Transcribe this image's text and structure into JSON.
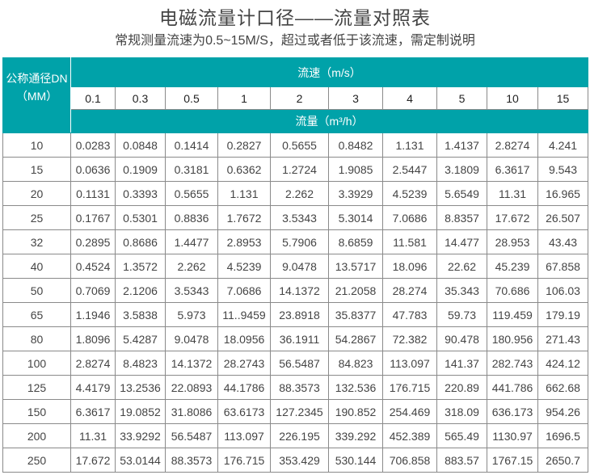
{
  "title": "电磁流量计口径——流量对照表",
  "subtitle": "常规测量流速为0.5~15M/S，超过或者低于该流速，需定制说明",
  "colors": {
    "header_bg": "#00a2a9",
    "header_text": "#ffffff",
    "border": "#8a8a8a"
  },
  "table": {
    "dn_header_line1": "公称通径DN",
    "dn_header_line2": "（MM）",
    "speed_header": "流速（m/s）",
    "flow_header": "流量（m³/h）",
    "speeds": [
      "0.1",
      "0.3",
      "0.5",
      "1",
      "2",
      "3",
      "4",
      "5",
      "10",
      "15"
    ],
    "rows": [
      {
        "dn": "10",
        "values": [
          "0.0283",
          "0.0848",
          "0.1414",
          "0.2827",
          "0.5655",
          "0.8482",
          "1.131",
          "1.4137",
          "2.8274",
          "4.241"
        ]
      },
      {
        "dn": "15",
        "values": [
          "0.0636",
          "0.1909",
          "0.3181",
          "0.6362",
          "1.2724",
          "1.9085",
          "2.5447",
          "3.1809",
          "6.3617",
          "9.543"
        ]
      },
      {
        "dn": "20",
        "values": [
          "0.1131",
          "0.3393",
          "0.5655",
          "1.131",
          "2.262",
          "3.3929",
          "4.5239",
          "5.6549",
          "11.31",
          "16.965"
        ]
      },
      {
        "dn": "25",
        "values": [
          "0.1767",
          "0.5301",
          "0.8836",
          "1.7672",
          "3.5343",
          "5.3014",
          "7.0686",
          "8.8357",
          "17.672",
          "26.507"
        ]
      },
      {
        "dn": "32",
        "values": [
          "0.2895",
          "0.8686",
          "1.4477",
          "2.8953",
          "5.7906",
          "8.6859",
          "11.581",
          "14.477",
          "28.953",
          "43.43"
        ]
      },
      {
        "dn": "40",
        "values": [
          "0.4524",
          "1.3572",
          "2.262",
          "4.5239",
          "9.0478",
          "13.5717",
          "18.096",
          "22.62",
          "45.239",
          "67.858"
        ]
      },
      {
        "dn": "50",
        "values": [
          "0.7069",
          "2.1206",
          "3.5343",
          "7.0686",
          "14.1372",
          "21.2058",
          "28.274",
          "35.343",
          "70.686",
          "106.03"
        ]
      },
      {
        "dn": "65",
        "values": [
          "1.1946",
          "3.5838",
          "5.973",
          "11..9459",
          "23.8918",
          "35.8377",
          "47.783",
          "59.73",
          "119.459",
          "179.19"
        ]
      },
      {
        "dn": "80",
        "values": [
          "1.8096",
          "5.4287",
          "9.0478",
          "18.0956",
          "36.1911",
          "54.2867",
          "72.382",
          "90.478",
          "180.956",
          "271.43"
        ]
      },
      {
        "dn": "100",
        "values": [
          "2.8274",
          "8.4823",
          "14.1372",
          "28.2743",
          "56.5487",
          "84.823",
          "113.097",
          "141.37",
          "282.743",
          "424.12"
        ]
      },
      {
        "dn": "125",
        "values": [
          "4.4179",
          "13.2536",
          "22.0893",
          "44.1786",
          "88.3573",
          "132.536",
          "176.715",
          "220.89",
          "441.786",
          "662.68"
        ]
      },
      {
        "dn": "150",
        "values": [
          "6.3617",
          "19.0852",
          "31.8086",
          "63.6173",
          "127.2345",
          "190.852",
          "254.469",
          "318.09",
          "636.173",
          "954.26"
        ]
      },
      {
        "dn": "200",
        "values": [
          "11.31",
          "33.9292",
          "56.5487",
          "113.097",
          "226.195",
          "339.292",
          "452.389",
          "565.49",
          "1130.97",
          "1696.5"
        ]
      },
      {
        "dn": "250",
        "values": [
          "17.672",
          "53.0144",
          "88.3573",
          "176.715",
          "353.429",
          "530.144",
          "706.858",
          "883.57",
          "1767.15",
          "2650.7"
        ]
      }
    ]
  }
}
